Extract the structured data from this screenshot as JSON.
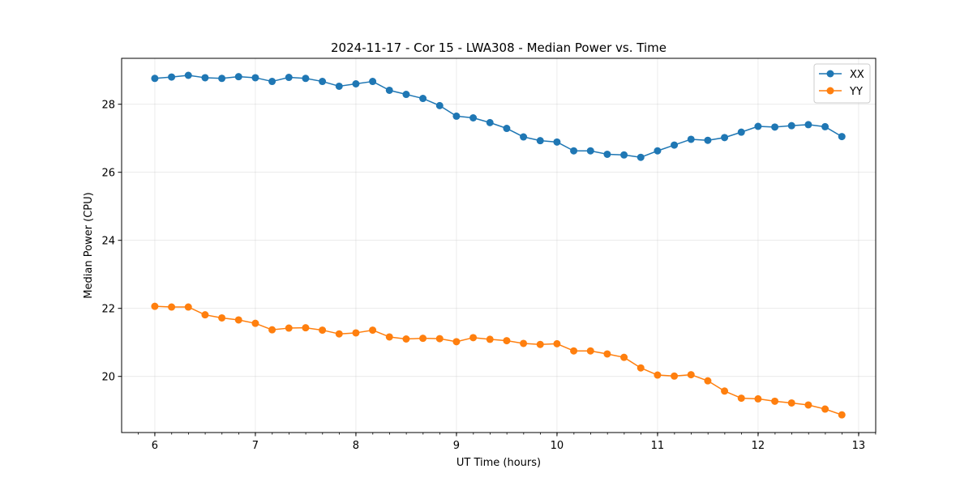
{
  "chart_data": {
    "type": "line",
    "title": "2024-11-17 - Cor 15 - LWA308 - Median Power vs. Time",
    "xlabel": "UT Time (hours)",
    "ylabel": "Median Power (CPU)",
    "xlim": [
      5.67,
      13.17
    ],
    "ylim": [
      18.35,
      29.35
    ],
    "xticks": [
      6,
      7,
      8,
      9,
      10,
      11,
      12,
      13
    ],
    "yticks": [
      20,
      22,
      24,
      26,
      28
    ],
    "x_minor_step": 0.1667,
    "grid": true,
    "legend_position": "top-right",
    "x": [
      6.0,
      6.1667,
      6.3333,
      6.5,
      6.6667,
      6.8333,
      7.0,
      7.1667,
      7.3333,
      7.5,
      7.6667,
      7.8333,
      8.0,
      8.1667,
      8.3333,
      8.5,
      8.6667,
      8.8333,
      9.0,
      9.1667,
      9.3333,
      9.5,
      9.6667,
      9.8333,
      10.0,
      10.1667,
      10.3333,
      10.5,
      10.6667,
      10.8333,
      11.0,
      11.1667,
      11.3333,
      11.5,
      11.6667,
      11.8333,
      12.0,
      12.1667,
      12.3333,
      12.5,
      12.6667,
      12.8333
    ],
    "series": [
      {
        "name": "XX",
        "color": "#1f77b4",
        "values": [
          28.76,
          28.8,
          28.85,
          28.78,
          28.76,
          28.81,
          28.78,
          28.67,
          28.79,
          28.76,
          28.67,
          28.53,
          28.6,
          28.67,
          28.41,
          28.29,
          28.17,
          27.96,
          27.65,
          27.6,
          27.46,
          27.29,
          27.04,
          26.93,
          26.89,
          26.63,
          26.63,
          26.53,
          26.51,
          26.44,
          26.63,
          26.8,
          26.97,
          26.94,
          27.02,
          27.18,
          27.35,
          27.33,
          27.37,
          27.4,
          27.34,
          27.05
        ]
      },
      {
        "name": "YY",
        "color": "#ff7f0e",
        "values": [
          22.06,
          22.04,
          22.04,
          21.81,
          21.72,
          21.66,
          21.56,
          21.37,
          21.42,
          21.43,
          21.36,
          21.25,
          21.28,
          21.36,
          21.16,
          21.1,
          21.12,
          21.11,
          21.02,
          21.14,
          21.09,
          21.05,
          20.97,
          20.94,
          20.96,
          20.75,
          20.75,
          20.66,
          20.56,
          20.25,
          20.04,
          20.01,
          20.05,
          19.87,
          19.57,
          19.36,
          19.34,
          19.27,
          19.22,
          19.16,
          19.04,
          18.87
        ]
      }
    ]
  }
}
